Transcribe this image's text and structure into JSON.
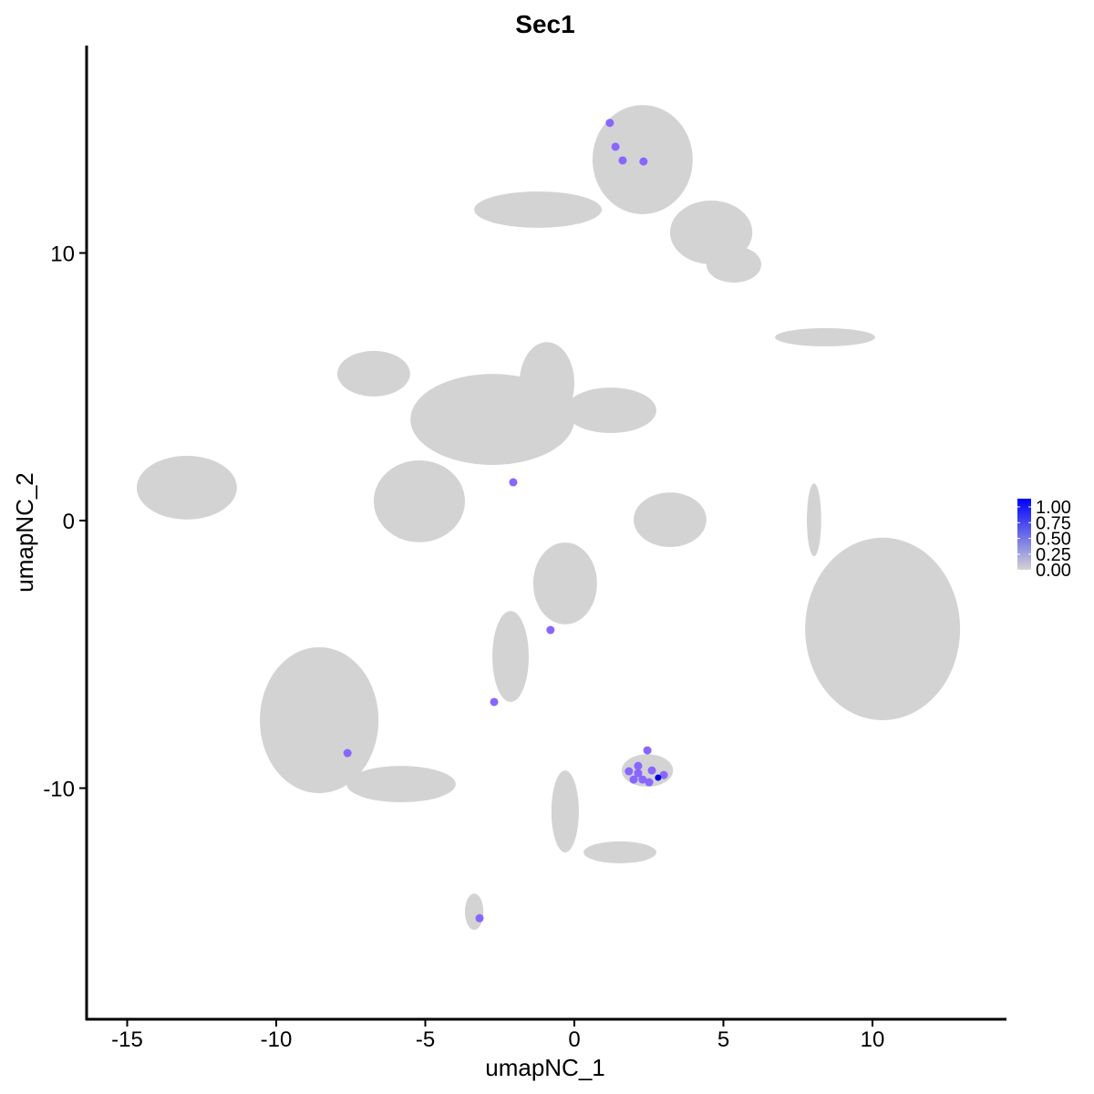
{
  "chart_data": {
    "type": "scatter",
    "title": "Sec1",
    "xlabel": "umapNC_1",
    "ylabel": "umapNC_2",
    "xlim": [
      -16.5,
      14.3
    ],
    "ylim": [
      -18.5,
      17.6
    ],
    "xticks": [
      -15,
      -10,
      -5,
      0,
      5,
      10
    ],
    "yticks": [
      -10,
      0,
      10
    ],
    "grid": false,
    "colors": {
      "low": "#d3d3d3",
      "high": "#0000ff"
    },
    "legend": {
      "placement": "right",
      "labels": [
        "1.00",
        "0.75",
        "0.50",
        "0.25",
        "0.00"
      ],
      "range": [
        0,
        1
      ]
    },
    "background_clusters": [
      {
        "cx": 2.29,
        "cy": 13.49,
        "rx": 1.68,
        "ry": 2.04
      },
      {
        "cx": -1.22,
        "cy": 11.62,
        "rx": 2.14,
        "ry": 0.68
      },
      {
        "cx": 4.59,
        "cy": 10.77,
        "rx": 1.38,
        "ry": 1.19
      },
      {
        "cx": 5.35,
        "cy": 9.57,
        "rx": 0.92,
        "ry": 0.68
      },
      {
        "cx": -6.73,
        "cy": 5.49,
        "rx": 1.22,
        "ry": 0.85
      },
      {
        "cx": -2.75,
        "cy": 3.78,
        "rx": 2.75,
        "ry": 1.7
      },
      {
        "cx": -0.92,
        "cy": 5.14,
        "rx": 0.92,
        "ry": 1.53
      },
      {
        "cx": 1.22,
        "cy": 4.12,
        "rx": 1.53,
        "ry": 0.85
      },
      {
        "cx": -5.2,
        "cy": 0.72,
        "rx": 1.53,
        "ry": 1.53
      },
      {
        "cx": -13.0,
        "cy": 1.23,
        "rx": 1.68,
        "ry": 1.19
      },
      {
        "cx": 10.34,
        "cy": -4.05,
        "rx": 2.6,
        "ry": 3.41
      },
      {
        "cx": 8.41,
        "cy": 6.85,
        "rx": 1.68,
        "ry": 0.34
      },
      {
        "cx": 3.21,
        "cy": 0.03,
        "rx": 1.22,
        "ry": 1.02
      },
      {
        "cx": -0.31,
        "cy": -2.35,
        "rx": 1.07,
        "ry": 1.53
      },
      {
        "cx": -2.14,
        "cy": -5.08,
        "rx": 0.61,
        "ry": 1.7
      },
      {
        "cx": -8.56,
        "cy": -7.46,
        "rx": 1.99,
        "ry": 2.73
      },
      {
        "cx": -5.81,
        "cy": -9.85,
        "rx": 1.83,
        "ry": 0.68
      },
      {
        "cx": 2.45,
        "cy": -9.34,
        "rx": 0.86,
        "ry": 0.61
      },
      {
        "cx": -0.31,
        "cy": -10.87,
        "rx": 0.46,
        "ry": 1.53
      },
      {
        "cx": 1.53,
        "cy": -12.4,
        "rx": 1.22,
        "ry": 0.41
      },
      {
        "cx": -3.36,
        "cy": -14.62,
        "rx": 0.31,
        "ry": 0.68
      },
      {
        "cx": 8.04,
        "cy": 0.03,
        "rx": 0.24,
        "ry": 1.36
      }
    ],
    "points": [
      {
        "x": 1.19,
        "y": 14.86,
        "v": 0.5
      },
      {
        "x": 1.38,
        "y": 13.97,
        "v": 0.5
      },
      {
        "x": 1.62,
        "y": 13.46,
        "v": 0.5
      },
      {
        "x": 2.32,
        "y": 13.42,
        "v": 0.5
      },
      {
        "x": -2.05,
        "y": 1.43,
        "v": 0.5
      },
      {
        "x": -0.8,
        "y": -4.09,
        "v": 0.5
      },
      {
        "x": -2.69,
        "y": -6.78,
        "v": 0.5
      },
      {
        "x": -7.61,
        "y": -8.69,
        "v": 0.5
      },
      {
        "x": -3.18,
        "y": -14.86,
        "v": 0.5
      },
      {
        "x": 2.45,
        "y": -8.59,
        "v": 0.5
      },
      {
        "x": 1.83,
        "y": -9.37,
        "v": 0.5
      },
      {
        "x": 2.14,
        "y": -9.17,
        "v": 0.5
      },
      {
        "x": 2.29,
        "y": -9.68,
        "v": 0.5
      },
      {
        "x": 2.6,
        "y": -9.34,
        "v": 0.5
      },
      {
        "x": 1.99,
        "y": -9.68,
        "v": 0.5
      },
      {
        "x": 3.0,
        "y": -9.51,
        "v": 0.5
      },
      {
        "x": 2.51,
        "y": -9.78,
        "v": 0.5
      },
      {
        "x": 2.14,
        "y": -9.44,
        "v": 0.5
      },
      {
        "x": 2.81,
        "y": -9.61,
        "v": 1.0
      }
    ]
  }
}
